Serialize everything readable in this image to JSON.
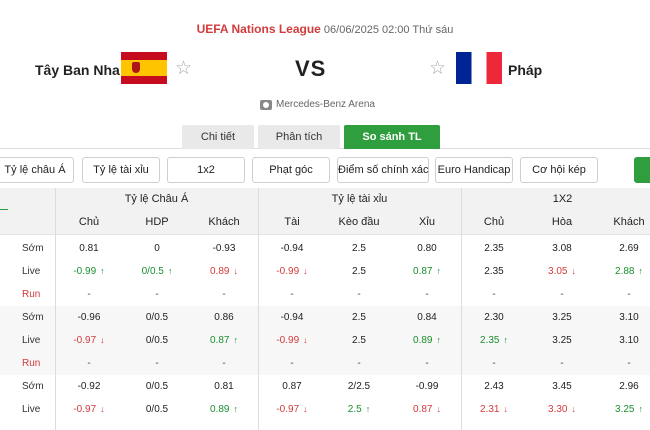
{
  "match": {
    "league": "UEFA Nations League",
    "datetime": "06/06/2025 02:00 Thứ sáu",
    "home_team": "Tây Ban Nha",
    "away_team": "Pháp",
    "vs": "VS",
    "venue": "Mercedes-Benz Arena"
  },
  "tabs": [
    {
      "label": "Chi tiết",
      "active": false
    },
    {
      "label": "Phân tích",
      "active": false
    },
    {
      "label": "So sánh TL",
      "active": true
    }
  ],
  "filters": [
    "Tỷ lệ châu Á",
    "Tỷ lệ tài xỉu",
    "1x2",
    "Phạt góc",
    "Điểm số chính xác",
    "Euro Handicap",
    "Cơ hội kép"
  ],
  "table": {
    "plus": "+",
    "groups": [
      "Tỷ lệ Châu Á",
      "Tỷ lệ tài xỉu",
      "1X2"
    ],
    "columns": [
      "Chủ",
      "HDP",
      "Khách",
      "Tài",
      "Kèo đầu",
      "Xỉu",
      "Chủ",
      "Hòa",
      "Khách"
    ],
    "blocks": [
      {
        "rows": [
          {
            "label": "Sớm",
            "cells": [
              {
                "v": "0.81"
              },
              {
                "v": "0"
              },
              {
                "v": "-0.93"
              },
              {
                "v": "-0.94"
              },
              {
                "v": "2.5"
              },
              {
                "v": "0.80"
              },
              {
                "v": "2.35"
              },
              {
                "v": "3.08"
              },
              {
                "v": "2.69"
              }
            ]
          },
          {
            "label": "Live",
            "cells": [
              {
                "v": "-0.99",
                "d": "up"
              },
              {
                "v": "0/0.5",
                "d": "up"
              },
              {
                "v": "0.89",
                "d": "down"
              },
              {
                "v": "-0.99",
                "d": "down"
              },
              {
                "v": "2.5"
              },
              {
                "v": "0.87",
                "d": "up"
              },
              {
                "v": "2.35"
              },
              {
                "v": "3.05",
                "d": "down"
              },
              {
                "v": "2.88",
                "d": "up"
              }
            ]
          },
          {
            "label": "Run",
            "cells": [
              {
                "v": "-"
              },
              {
                "v": "-"
              },
              {
                "v": "-"
              },
              {
                "v": "-"
              },
              {
                "v": "-"
              },
              {
                "v": "-"
              },
              {
                "v": "-"
              },
              {
                "v": "-"
              },
              {
                "v": "-"
              }
            ]
          }
        ]
      },
      {
        "rows": [
          {
            "label": "Sớm",
            "cells": [
              {
                "v": "-0.96"
              },
              {
                "v": "0/0.5"
              },
              {
                "v": "0.86"
              },
              {
                "v": "-0.94"
              },
              {
                "v": "2.5"
              },
              {
                "v": "0.84"
              },
              {
                "v": "2.30"
              },
              {
                "v": "3.25"
              },
              {
                "v": "3.10"
              }
            ]
          },
          {
            "label": "Live",
            "cells": [
              {
                "v": "-0.97",
                "d": "down"
              },
              {
                "v": "0/0.5"
              },
              {
                "v": "0.87",
                "d": "up"
              },
              {
                "v": "-0.99",
                "d": "down"
              },
              {
                "v": "2.5"
              },
              {
                "v": "0.89",
                "d": "up"
              },
              {
                "v": "2.35",
                "d": "up"
              },
              {
                "v": "3.25"
              },
              {
                "v": "3.10"
              }
            ]
          },
          {
            "label": "Run",
            "cells": [
              {
                "v": "-"
              },
              {
                "v": "-"
              },
              {
                "v": "-"
              },
              {
                "v": "-"
              },
              {
                "v": "-"
              },
              {
                "v": "-"
              },
              {
                "v": "-"
              },
              {
                "v": "-"
              },
              {
                "v": "-"
              }
            ]
          }
        ]
      },
      {
        "rows": [
          {
            "label": "Sớm",
            "cells": [
              {
                "v": "-0.92"
              },
              {
                "v": "0/0.5"
              },
              {
                "v": "0.81"
              },
              {
                "v": "0.87"
              },
              {
                "v": "2/2.5"
              },
              {
                "v": "-0.99"
              },
              {
                "v": "2.43"
              },
              {
                "v": "3.45"
              },
              {
                "v": "2.96"
              }
            ]
          },
          {
            "label": "Live",
            "cells": [
              {
                "v": "-0.97",
                "d": "down"
              },
              {
                "v": "0/0.5"
              },
              {
                "v": "0.89",
                "d": "up"
              },
              {
                "v": "-0.97",
                "d": "down"
              },
              {
                "v": "2.5",
                "d": "up"
              },
              {
                "v": "0.87",
                "d": "down"
              },
              {
                "v": "2.31",
                "d": "down"
              },
              {
                "v": "3.30",
                "d": "down"
              },
              {
                "v": "3.25",
                "d": "up"
              }
            ]
          }
        ]
      }
    ]
  }
}
